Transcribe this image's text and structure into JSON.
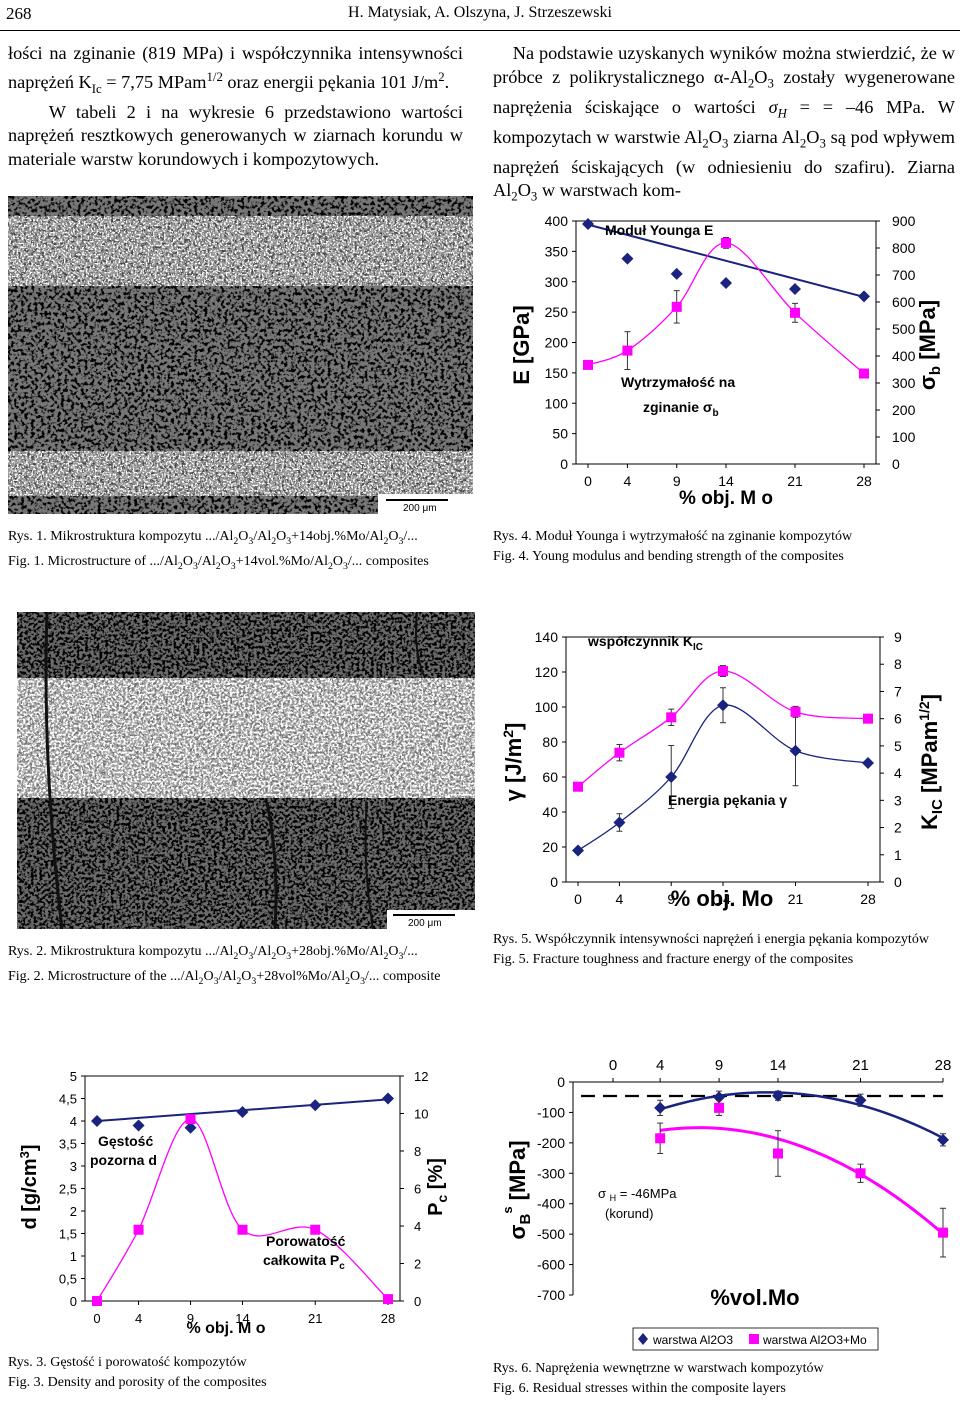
{
  "header": {
    "page_number": "268",
    "running_title": "H. Matysiak, A. Olszyna, J. Strzeszewski"
  },
  "text": {
    "left_para": "łości na zginanie (819 MPa) i współczynnika intensywności naprężeń K<sub>Ic</sub> = 7,75 MPam<sup>1/2</sup> oraz energii pękania 101 J/m<sup>2</sup>.<br>&nbsp;&nbsp;&nbsp;&nbsp;W tabeli 2 i na wykresie 6 przedstawiono wartości naprężeń resztkowych generowanych w ziarnach korundu w materiale warstw korundowych i kompozytowych.",
    "right_para": "&nbsp;&nbsp;&nbsp;&nbsp;Na podstawie uzyskanych wyników można stwierdzić, że w próbce z polikrystalicznego α-Al<sub>2</sub>O<sub>3</sub> zostały wygenerowane naprężenia ściskające o wartości <i>σ<sub>H</sub></i> = = –46 MPa. W kompozytach w warstwie Al<sub>2</sub>O<sub>3</sub> ziarna Al<sub>2</sub>O<sub>3</sub> są pod wpływem naprężeń ściskających (w odniesieniu do szafiru). Ziarna Al<sub>2</sub>O<sub>3</sub> w warstwach kom-"
  },
  "figures": {
    "fig1": {
      "scale_label": "200 μm",
      "caption_pl": "Rys. 1. Mikrostruktura kompozytu .../Al<sub>2</sub>O<sub>3</sub>/Al<sub>2</sub>O<sub>3</sub>+14obj.%Mo/Al<sub>2</sub>O<sub>3</sub>/...",
      "caption_en": "Fig. 1. Microstructure of .../Al<sub>2</sub>O<sub>3</sub>/Al<sub>2</sub>O<sub>3</sub>+14vol.%Mo/Al<sub>2</sub>O<sub>3</sub>/... composites"
    },
    "fig2": {
      "scale_label": "200 μm",
      "caption_pl": "Rys. 2. Mikrostruktura kompozytu .../Al<sub>2</sub>O<sub>3</sub>/Al<sub>2</sub>O<sub>3</sub>+28obj.%Mo/Al<sub>2</sub>O<sub>3</sub>/...",
      "caption_en": "Fig. 2. Microstructure of the .../Al<sub>2</sub>O<sub>3</sub>/Al<sub>2</sub>O<sub>3</sub>+28vol%Mo/Al<sub>2</sub>O<sub>3</sub>/... composite"
    },
    "fig3": {
      "caption_pl": "Rys. 3. Gęstość i porowatość kompozytów",
      "caption_en": "Fig. 3. Density and porosity of the composites"
    },
    "fig4": {
      "caption_pl": "Rys. 4. Moduł Younga i wytrzymałość na zginanie kompozytów",
      "caption_en": "Fig. 4. Young modulus and bending strength of the composites"
    },
    "fig5": {
      "caption_pl": "Rys. 5. Współczynnik intensywności naprężeń i energia pękania kompozytów",
      "caption_en": "Fig. 5. Fracture toughness and fracture energy of the composites"
    },
    "fig6": {
      "caption_pl": "Rys. 6. Naprężenia wewnętrzne w warstwach kompozytów",
      "caption_en": "Fig. 6. Residual stresses within the composite layers"
    }
  },
  "chart_data": [
    {
      "id": "fig4",
      "type": "line",
      "x": [
        0,
        4,
        9,
        14,
        21,
        28
      ],
      "xlabel": "% obj. M o",
      "ylabel_left": "E [GPa]",
      "ylim_left": [
        0,
        400
      ],
      "yticks_left": [
        0,
        50,
        100,
        150,
        200,
        250,
        300,
        350,
        400
      ],
      "ylabel_right": "σ b [MPa]",
      "ylim_right": [
        0,
        900
      ],
      "yticks_right": [
        0,
        100,
        200,
        300,
        400,
        500,
        600,
        700,
        800,
        900
      ],
      "series": [
        {
          "name": "Moduł Younga E",
          "axis": "left",
          "marker": "diamond",
          "color": "#1a237e",
          "values": [
            395,
            338,
            313,
            298,
            288,
            276
          ],
          "trend": [
            [
              0,
              394
            ],
            [
              28,
              275
            ]
          ]
        },
        {
          "name": "Wytrzymałość na zginanie σ b",
          "axis": "right",
          "marker": "square",
          "color": "#ff00ff",
          "values": [
            367,
            420,
            582,
            819,
            560,
            335
          ],
          "errors": [
            0,
            70,
            60,
            20,
            35,
            0
          ]
        }
      ]
    },
    {
      "id": "fig5",
      "type": "line",
      "x": [
        0,
        4,
        9,
        14,
        21,
        28
      ],
      "xlabel": "% obj. Mo",
      "ylabel_left": "γ [J/m²]",
      "ylim_left": [
        0,
        140
      ],
      "yticks_left": [
        0,
        20,
        40,
        60,
        80,
        100,
        120,
        140
      ],
      "ylabel_right": "K IC [MPam 1/2]",
      "ylim_right": [
        0,
        9
      ],
      "yticks_right": [
        0,
        1,
        2,
        3,
        4,
        5,
        6,
        7,
        8,
        9
      ],
      "series": [
        {
          "name": "Energia pękania γ",
          "axis": "left",
          "marker": "diamond",
          "color": "#1a237e",
          "values": [
            18,
            34,
            60,
            101,
            75,
            68
          ],
          "errors": [
            0,
            5,
            18,
            10,
            20,
            0
          ]
        },
        {
          "name": "współczynnik K IC",
          "axis": "right",
          "marker": "square",
          "color": "#ff00ff",
          "values": [
            3.5,
            4.75,
            6.05,
            7.75,
            6.25,
            6.0
          ],
          "errors": [
            0,
            0.3,
            0.3,
            0.2,
            0.2,
            0
          ]
        }
      ]
    },
    {
      "id": "fig3",
      "type": "line",
      "x": [
        0,
        4,
        9,
        14,
        21,
        28
      ],
      "xlabel": "% obj. M o",
      "ylabel_left": "d [g/cm³]",
      "ylim_left": [
        0,
        5
      ],
      "yticks_left": [
        "0",
        "0,5",
        "1",
        "1,5",
        "2",
        "2,5",
        "3",
        "3,5",
        "4",
        "4,5",
        "5"
      ],
      "ylabel_right": "P c [%]",
      "ylim_right": [
        0,
        12
      ],
      "yticks_right": [
        0,
        2,
        4,
        6,
        8,
        10,
        12
      ],
      "series": [
        {
          "name": "Gęstość pozorna d",
          "axis": "left",
          "marker": "diamond",
          "color": "#1a237e",
          "values": [
            4.0,
            3.9,
            3.85,
            4.2,
            4.35,
            4.5
          ],
          "trend": [
            [
              0,
              4.0
            ],
            [
              28,
              4.48
            ]
          ]
        },
        {
          "name": "Porowatość całkowita P c",
          "axis": "right",
          "marker": "square",
          "color": "#ff00ff",
          "values": [
            0,
            3.8,
            9.7,
            3.8,
            3.8,
            0.1
          ]
        }
      ]
    },
    {
      "id": "fig6",
      "type": "line",
      "x": [
        0,
        4,
        9,
        14,
        21,
        28
      ],
      "xlabel": "%vol.Mo",
      "ylabel": "σ B s [MPa]",
      "ylim": [
        -700,
        0
      ],
      "yticks": [
        0,
        -100,
        -200,
        -300,
        -400,
        -500,
        -600,
        -700
      ],
      "xticks": [
        0,
        4,
        9,
        14,
        21,
        28
      ],
      "annotation": "σ H = -46MPa (korund)",
      "reference_line": -46,
      "series": [
        {
          "name": "warstwa Al2O3",
          "marker": "diamond",
          "color": "#1a237e",
          "x": [
            4,
            9,
            14,
            21,
            28
          ],
          "values": [
            -85,
            -50,
            -45,
            -60,
            -190
          ],
          "errors": [
            25,
            20,
            15,
            20,
            20
          ]
        },
        {
          "name": "warstwa Al2O3+Mo",
          "marker": "square",
          "color": "#ff00ff",
          "x": [
            4,
            9,
            14,
            21,
            28
          ],
          "values": [
            -185,
            -85,
            -235,
            -300,
            -495
          ],
          "errors": [
            50,
            25,
            75,
            30,
            80
          ]
        }
      ],
      "legend_position": "bottom"
    }
  ]
}
